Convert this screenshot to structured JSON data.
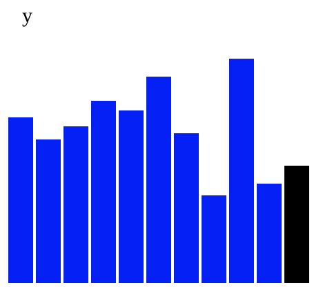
{
  "chart_data": {
    "type": "bar",
    "ylabel": "y",
    "values": [
      240,
      208,
      227,
      264,
      250,
      299,
      217,
      127,
      325,
      144,
      170
    ],
    "colors": [
      "#0520f5",
      "#0520f5",
      "#0520f5",
      "#0520f5",
      "#0520f5",
      "#0520f5",
      "#0520f5",
      "#0520f5",
      "#0520f5",
      "#0520f5",
      "#000000"
    ],
    "ylim": [
      0,
      325
    ],
    "grid": false
  }
}
